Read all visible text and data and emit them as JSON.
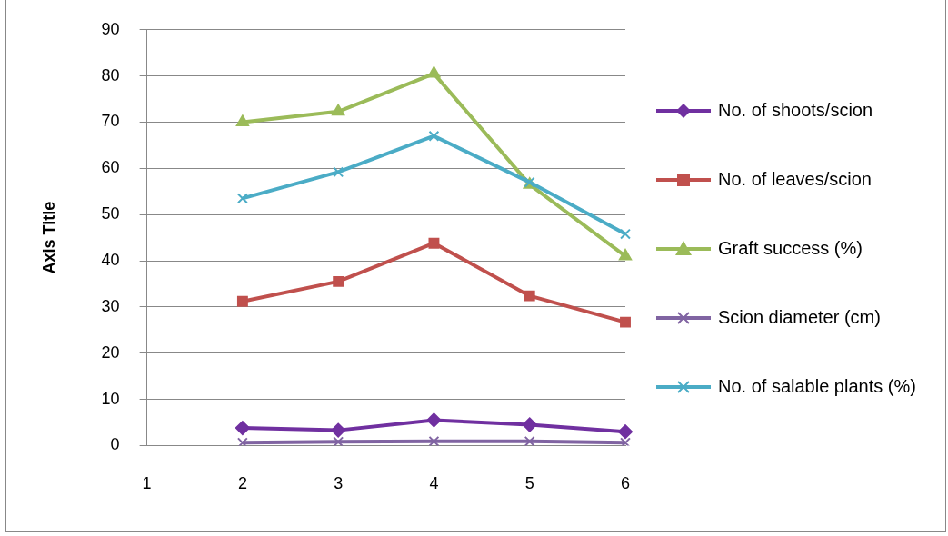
{
  "chart_data": {
    "type": "line",
    "ylabel": "Axis Title",
    "categories": [
      "1",
      "2",
      "3",
      "4",
      "5",
      "6"
    ],
    "series": [
      {
        "name": "No. of shoots/scion",
        "color": "#7030a0",
        "marker": "diamond",
        "values": [
          null,
          3.8,
          3.3,
          5.5,
          4.5,
          3.0
        ]
      },
      {
        "name": "No. of leaves/scion",
        "color": "#c0504d",
        "marker": "square",
        "values": [
          null,
          31.2,
          35.5,
          43.8,
          32.4,
          26.7
        ]
      },
      {
        "name": "Graft success (%)",
        "color": "#9bbb59",
        "marker": "triangle",
        "values": [
          null,
          70.0,
          72.3,
          80.5,
          56.5,
          41.0
        ]
      },
      {
        "name": "Scion diameter (cm)",
        "color": "#8064a2",
        "marker": "cross",
        "values": [
          null,
          0.6,
          0.8,
          0.9,
          0.9,
          0.6
        ]
      },
      {
        "name": "No. of salable plants (%)",
        "color": "#4bacc6",
        "marker": "cross",
        "values": [
          null,
          53.5,
          59.2,
          67.0,
          57.0,
          45.8
        ]
      }
    ],
    "ylim": [
      0,
      90
    ],
    "yticks": [
      0,
      10,
      20,
      30,
      40,
      50,
      60,
      70,
      80,
      90
    ],
    "grid": "y",
    "legend": "right"
  }
}
